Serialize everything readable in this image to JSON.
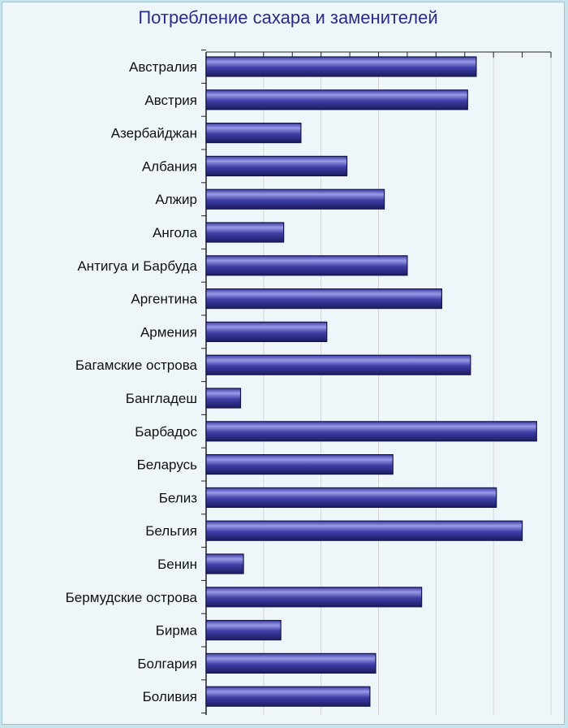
{
  "chart_data": {
    "type": "bar",
    "orientation": "horizontal",
    "title": "Потребление сахара и заменителей",
    "xlabel": "",
    "ylabel": "",
    "categories": [
      "Австралия",
      "Австрия",
      "Азербайджан",
      "Албания",
      "Алжир",
      "Ангола",
      "Антигуа и Барбуда",
      "Аргентина",
      "Армения",
      "Багамские острова",
      "Бангладеш",
      "Барбадос",
      "Беларусь",
      "Белиз",
      "Бельгия",
      "Бенин",
      "Бермудские острова",
      "Бирма",
      "Болгария",
      "Боливия"
    ],
    "values": [
      94,
      91,
      33,
      49,
      62,
      27,
      70,
      82,
      42,
      92,
      12,
      115,
      65,
      101,
      110,
      13,
      75,
      26,
      59,
      57
    ],
    "xlim": [
      0,
      120
    ],
    "grid": true,
    "x_tick_labels_shown": false,
    "bar_color": "#2a2a7e",
    "background": "#eef6f9"
  }
}
